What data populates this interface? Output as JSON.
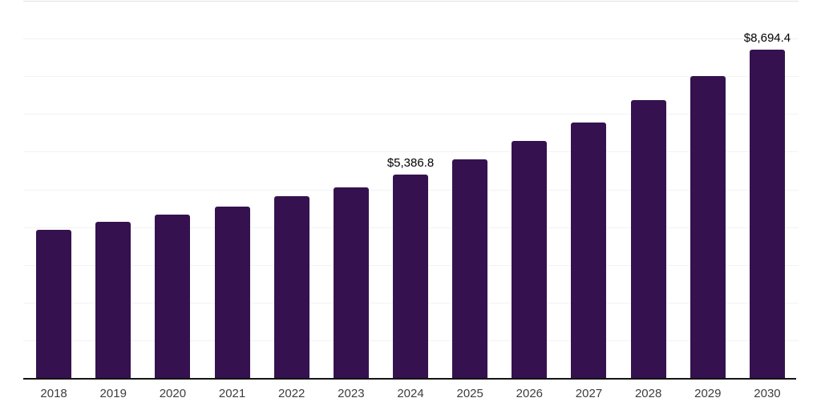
{
  "chart_data": {
    "type": "bar",
    "title": "",
    "xlabel": "",
    "ylabel": "",
    "categories": [
      "2018",
      "2019",
      "2020",
      "2021",
      "2022",
      "2023",
      "2024",
      "2025",
      "2026",
      "2027",
      "2028",
      "2029",
      "2030"
    ],
    "values": [
      3930,
      4130,
      4330,
      4540,
      4810,
      5050,
      5386.8,
      5800,
      6275,
      6770,
      7370,
      8010,
      8694.4
    ],
    "value_labels": [
      "",
      "",
      "",
      "",
      "",
      "",
      "$5,386.8",
      "",
      "",
      "",
      "",
      "",
      "$8,694.4"
    ],
    "labeled_points": [
      {
        "category": "2024",
        "label": "$5,386.8",
        "value": 5386.8
      },
      {
        "category": "2030",
        "label": "$8,694.4",
        "value": 8694.4
      }
    ],
    "ylim": [
      0,
      10000
    ],
    "gridline_interval": 1000,
    "grid": "horizontal",
    "y_tick_labels_visible": false,
    "legend_position": "none"
  },
  "colors": {
    "bar": "#35124F",
    "gridline": "#F2F2F2",
    "gridline_top": "#E2E2E2",
    "axis_line": "#141414",
    "value_label": "#000000",
    "tick_label": "#3D3D3D",
    "background": "#FFFFFF"
  }
}
